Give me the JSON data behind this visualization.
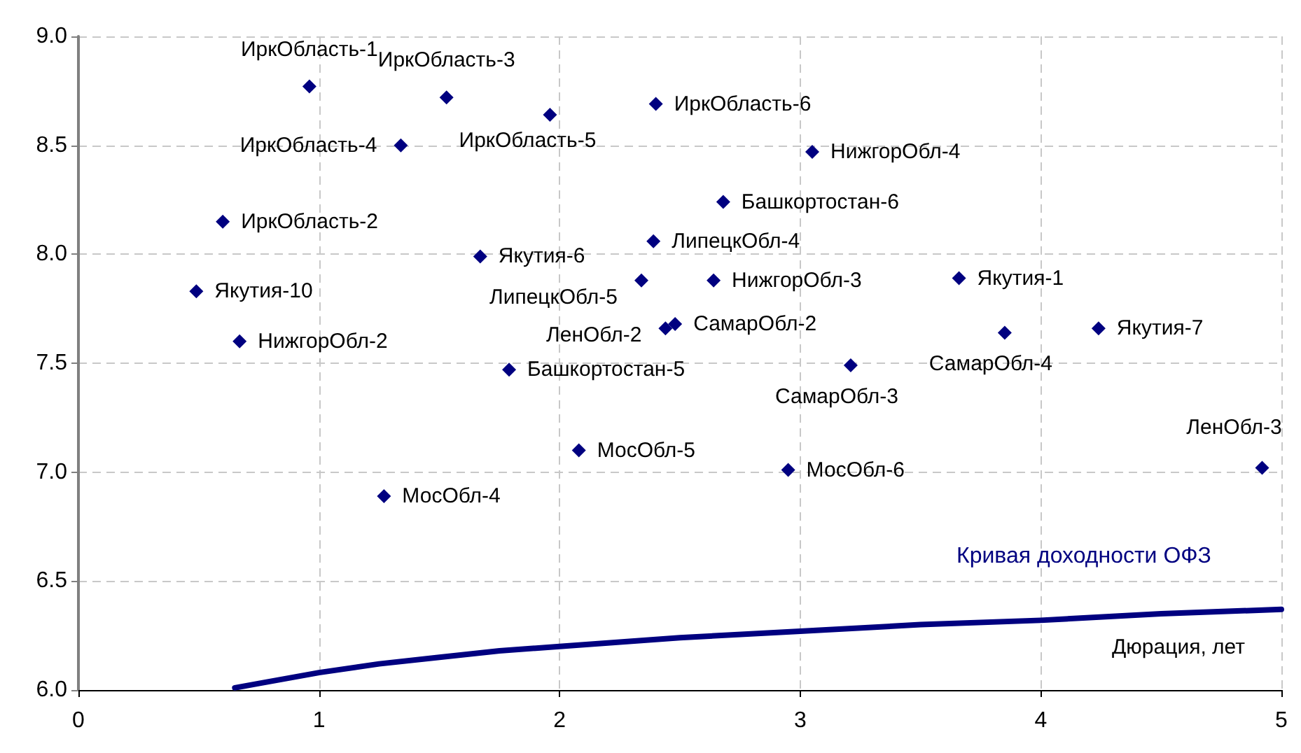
{
  "chart_data": {
    "type": "scatter",
    "xlabel": "Дюрация, лет",
    "xlim": [
      0,
      5
    ],
    "xticks": [
      0,
      1,
      2,
      3,
      4,
      5
    ],
    "ylim": [
      6,
      9
    ],
    "yticks": [
      {
        "value": 6,
        "label": "6.0"
      },
      {
        "value": 6.5,
        "label": "6.5"
      },
      {
        "value": 7,
        "label": "7.0"
      },
      {
        "value": 7.5,
        "label": "7.5"
      },
      {
        "value": 8,
        "label": "8.0"
      },
      {
        "value": 8.5,
        "label": "8.5"
      },
      {
        "value": 9,
        "label": "9.0"
      }
    ],
    "grid": true,
    "legend": false,
    "series": [
      {
        "color": "#000080",
        "marker": "diamond",
        "x": [
          0.96,
          1.53,
          1.96,
          2.4,
          1.34,
          3.05,
          0.6,
          2.68,
          2.39,
          1.67,
          0.49,
          2.34,
          2.64,
          3.66,
          0.67,
          2.44,
          2.48,
          3.85,
          4.24,
          1.79,
          3.21,
          2.08,
          2.95,
          4.92,
          1.27
        ],
        "values": [
          8.77,
          8.72,
          8.64,
          8.69,
          8.5,
          8.47,
          8.15,
          8.24,
          8.06,
          7.99,
          7.83,
          7.88,
          7.88,
          7.89,
          7.6,
          7.66,
          7.68,
          7.64,
          7.66,
          7.47,
          7.49,
          7.1,
          7.01,
          7.02,
          6.89
        ],
        "value_labels": [
          "ИркОбласть-1",
          "ИркОбласть-3",
          "ИркОбласть-5",
          "ИркОбласть-6",
          "ИркОбласть-4",
          "НижгорОбл-4",
          "ИркОбласть-2",
          "Башкортостан-6",
          "ЛипецкОбл-4",
          "Якутия-6",
          "Якутия-10",
          "ЛипецкОбл-5",
          "НижгорОбл-3",
          "Якутия-1",
          "НижгорОбл-2",
          "ЛенОбл-2",
          "СамарОбл-2",
          "СамарОбл-4",
          "Якутия-7",
          "Башкортостан-5",
          "СамарОбл-3",
          "МосОбл-5",
          "МосОбл-6",
          "ЛенОбл-3",
          "МосОбл-4"
        ]
      },
      {
        "type": "line",
        "name": "Кривая доходности ОФЗ",
        "color": "#000080",
        "marker": "none",
        "line_style": "solid",
        "x": [
          0.65,
          0.75,
          1.0,
          1.25,
          1.5,
          1.75,
          2.0,
          2.5,
          3.0,
          3.5,
          4.0,
          4.5,
          5.0
        ],
        "values": [
          6.01,
          6.03,
          6.08,
          6.12,
          6.15,
          6.18,
          6.2,
          6.24,
          6.27,
          6.3,
          6.32,
          6.35,
          6.37
        ]
      }
    ]
  }
}
